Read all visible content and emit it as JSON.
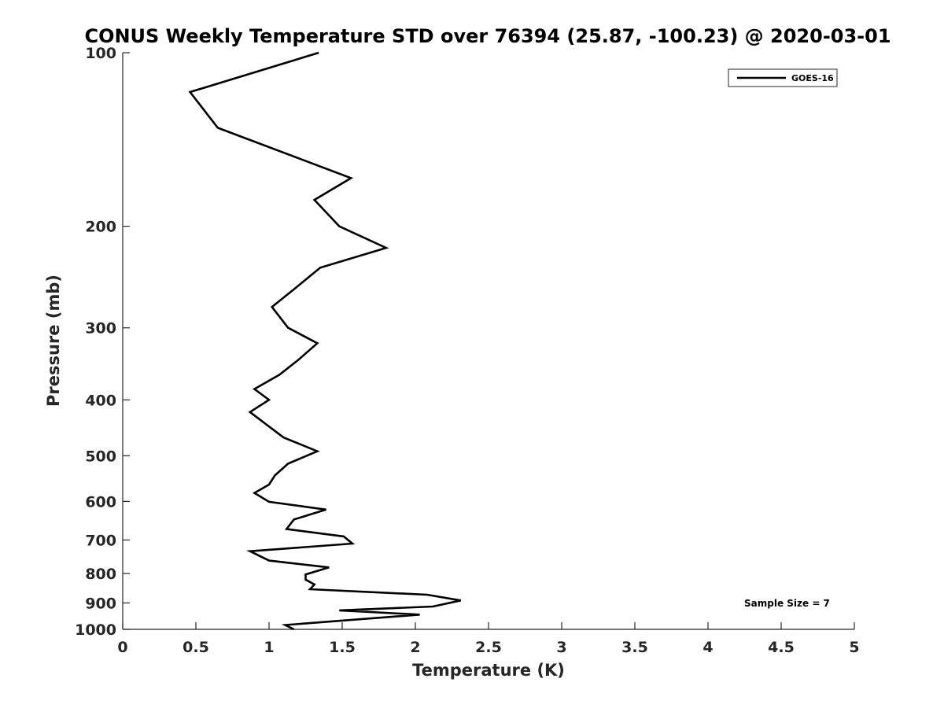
{
  "chart_data": {
    "type": "line",
    "title": "CONUS Weekly Temperature STD over 76394 (25.87, -100.23) @ 2020-03-01",
    "xlabel": "Temperature (K)",
    "ylabel": "Pressure (mb)",
    "xlim": [
      0,
      5
    ],
    "ylim": [
      100,
      1000
    ],
    "yscale": "log",
    "y_reversed": true,
    "x_ticks": [
      "0",
      "0.5",
      "1",
      "1.5",
      "2",
      "2.5",
      "3",
      "3.5",
      "4",
      "4.5",
      "5"
    ],
    "y_ticks": [
      "100",
      "200",
      "300",
      "400",
      "500",
      "600",
      "700",
      "800",
      "900",
      "1000"
    ],
    "grid": false,
    "legend_position": "top-right",
    "annotation": "Sample Size = 7",
    "series": [
      {
        "name": "GOES-16",
        "color": "#000000",
        "x": [
          1.34,
          0.46,
          0.65,
          1.56,
          1.31,
          1.48,
          1.8,
          1.35,
          1.18,
          1.02,
          1.13,
          1.33,
          1.2,
          1.07,
          0.9,
          1.0,
          0.87,
          1.0,
          1.1,
          1.33,
          1.13,
          1.04,
          1.0,
          0.9,
          1.0,
          1.39,
          1.17,
          1.12,
          1.51,
          1.57,
          0.87,
          1.0,
          1.41,
          1.25,
          1.25,
          1.31,
          1.28,
          2.08,
          2.31,
          2.12,
          1.48,
          2.03,
          1.11,
          1.17
        ],
        "y": [
          100,
          117,
          135,
          165,
          180,
          200,
          218,
          236,
          256,
          276,
          300,
          319,
          341,
          362,
          383,
          400,
          420,
          445,
          465,
          491,
          516,
          541,
          561,
          580,
          601,
          620,
          645,
          670,
          690,
          710,
          732,
          760,
          781,
          803,
          820,
          836,
          852,
          871,
          891,
          913,
          927,
          943,
          983,
          1000
        ]
      }
    ]
  }
}
